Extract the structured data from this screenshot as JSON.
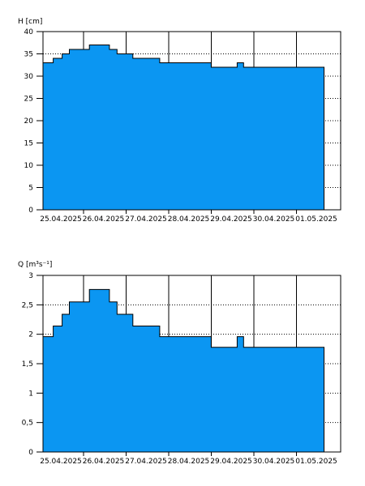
{
  "chart_data": [
    {
      "type": "area",
      "ylabel": "H [cm]",
      "ylim": [
        0,
        40
      ],
      "y_ticks": [
        "0",
        "5",
        "10",
        "15",
        "20",
        "25",
        "30",
        "35",
        "40"
      ],
      "x_labels": [
        "25.04.2025",
        "26.04.2025",
        "27.04.2025",
        "28.04.2025",
        "29.04.2025",
        "30.04.2025",
        "01.05.2025"
      ],
      "grid": {
        "horizontal": "dotted",
        "vertical": "solid"
      },
      "color": "#0b96f2",
      "x_days": [
        0,
        0.24,
        0.24,
        0.45,
        0.45,
        0.62,
        0.62,
        1.09,
        1.09,
        1.56,
        1.56,
        1.74,
        1.74,
        2.11,
        2.11,
        2.74,
        2.74,
        3.95,
        3.95,
        4.56,
        4.56,
        4.71,
        4.71,
        6.6
      ],
      "values": [
        33,
        33,
        34,
        34,
        35,
        35,
        36,
        36,
        37,
        37,
        36,
        36,
        35,
        35,
        34,
        34,
        33,
        33,
        32,
        32,
        33,
        33,
        32,
        32
      ]
    },
    {
      "type": "area",
      "ylabel": "Q [m³s⁻¹]",
      "ylim": [
        0,
        3
      ],
      "y_ticks": [
        "0",
        "0,5",
        "1",
        "1,5",
        "2",
        "2,5",
        "3"
      ],
      "x_labels": [
        "25.04.2025",
        "26.04.2025",
        "27.04.2025",
        "28.04.2025",
        "29.04.2025",
        "30.04.2025",
        "01.05.2025"
      ],
      "grid": {
        "horizontal": "dotted",
        "vertical": "solid"
      },
      "color": "#0b96f2",
      "x_days": [
        0,
        0.24,
        0.24,
        0.45,
        0.45,
        0.62,
        0.62,
        1.09,
        1.09,
        1.56,
        1.56,
        1.74,
        1.74,
        2.11,
        2.11,
        2.74,
        2.74,
        3.95,
        3.95,
        4.56,
        4.56,
        4.71,
        4.71,
        6.6
      ],
      "values": [
        1.96,
        1.96,
        2.14,
        2.14,
        2.34,
        2.34,
        2.55,
        2.55,
        2.76,
        2.76,
        2.55,
        2.55,
        2.34,
        2.34,
        2.14,
        2.14,
        1.96,
        1.96,
        1.78,
        1.78,
        1.96,
        1.96,
        1.78,
        1.78
      ]
    }
  ]
}
